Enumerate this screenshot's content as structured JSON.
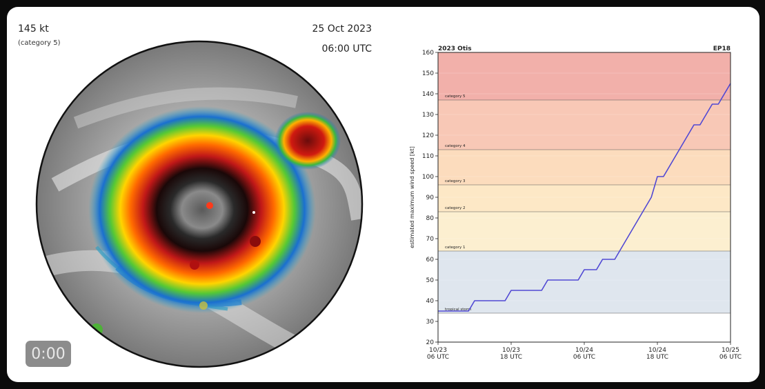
{
  "overlay": {
    "wind_speed": "145 kt",
    "category": "(category 5)",
    "date": "25 Oct 2023",
    "time": "06:00 UTC",
    "timer": "0:00"
  },
  "colors": {
    "tropical_storm": "#dfe6ee",
    "cat1": "#fcefd0",
    "cat2": "#fde8c6",
    "cat3": "#fcdcbd",
    "cat4": "#f8c8b6",
    "cat5": "#f2b0aa",
    "line": "#5048d4"
  },
  "chart_data": {
    "type": "line",
    "title": "2023 Otis",
    "storm_id": "EP18",
    "ylabel": "estimated maximum wind speed [kt]",
    "xlabel": "",
    "ylim": [
      20,
      160
    ],
    "yticks": [
      20,
      30,
      40,
      50,
      60,
      70,
      80,
      90,
      100,
      110,
      120,
      130,
      140,
      150,
      160
    ],
    "xlim": [
      0,
      48
    ],
    "xticks": [
      {
        "x": 0,
        "line1": "10/23",
        "line2": "06 UTC"
      },
      {
        "x": 12,
        "line1": "10/23",
        "line2": "18 UTC"
      },
      {
        "x": 24,
        "line1": "10/24",
        "line2": "06 UTC"
      },
      {
        "x": 36,
        "line1": "10/24",
        "line2": "18 UTC"
      },
      {
        "x": 48,
        "line1": "10/25",
        "line2": "06 UTC"
      }
    ],
    "bands": [
      {
        "label": "tropical storm",
        "from": 34,
        "to": 64,
        "color_key": "tropical_storm"
      },
      {
        "label": "category 1",
        "from": 64,
        "to": 83,
        "color_key": "cat1"
      },
      {
        "label": "category 2",
        "from": 83,
        "to": 96,
        "color_key": "cat2"
      },
      {
        "label": "category 3",
        "from": 96,
        "to": 113,
        "color_key": "cat3"
      },
      {
        "label": "category 4",
        "from": 113,
        "to": 137,
        "color_key": "cat4"
      },
      {
        "label": "category 5",
        "from": 137,
        "to": 160,
        "color_key": "cat5"
      }
    ],
    "series": [
      {
        "values": [
          [
            0,
            35
          ],
          [
            5,
            35
          ],
          [
            6,
            40
          ],
          [
            11,
            40
          ],
          [
            12,
            45
          ],
          [
            17,
            45
          ],
          [
            18,
            50
          ],
          [
            23,
            50
          ],
          [
            24,
            55
          ],
          [
            26,
            55
          ],
          [
            27,
            60
          ],
          [
            29,
            60
          ],
          [
            30,
            65
          ],
          [
            35,
            90
          ],
          [
            36,
            100
          ],
          [
            37,
            100
          ],
          [
            42,
            125
          ],
          [
            43,
            125
          ],
          [
            45,
            135
          ],
          [
            46,
            135
          ],
          [
            48,
            145
          ]
        ]
      }
    ]
  }
}
